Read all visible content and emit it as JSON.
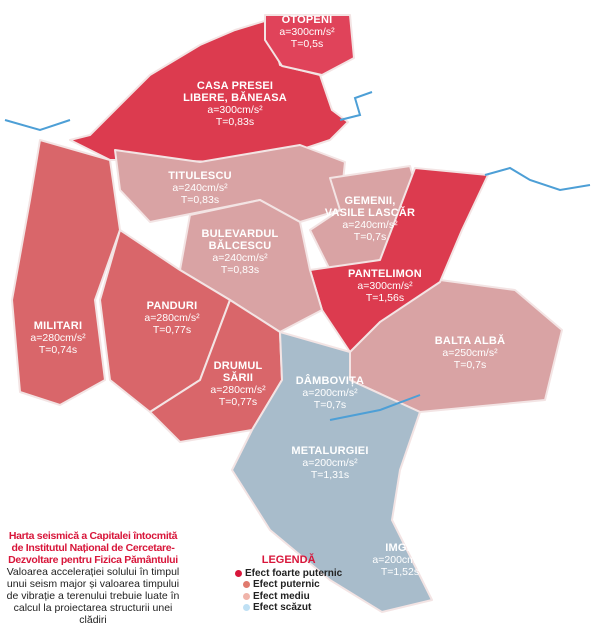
{
  "colors": {
    "very_strong": "#dc3b4f",
    "strong": "#d9666a",
    "medium": "#d9a3a4",
    "low": "#a8bccb",
    "river": "#4d9fd6"
  },
  "zones": [
    {
      "name": "OTOPENI",
      "a": "a=300cm/s²",
      "t": "T=0,5s",
      "effect": "very_strong"
    },
    {
      "name": "CASA PRESEI",
      "name2": "LIBERE, BĂNEASA",
      "a": "a=300cm/s²",
      "t": "T=0,83s",
      "effect": "very_strong"
    },
    {
      "name": "TITULESCU",
      "a": "a=240cm/s²",
      "t": "T=0,83s",
      "effect": "medium"
    },
    {
      "name": "GEMENII,",
      "name2": "VASILE LASCĂR",
      "a": "a=240cm/s²",
      "t": "T=0,7s",
      "effect": "medium"
    },
    {
      "name": "BULEVARDUL",
      "name2": "BĂLCESCU",
      "a": "a=240cm/s²",
      "t": "T=0,83s",
      "effect": "medium"
    },
    {
      "name": "PANTELIMON",
      "a": "a=300cm/s²",
      "t": "T=1,56s",
      "effect": "very_strong"
    },
    {
      "name": "MILITARI",
      "a": "a=280cm/s²",
      "t": "T=0,74s",
      "effect": "strong"
    },
    {
      "name": "PANDURI",
      "a": "a=280cm/s²",
      "t": "T=0,77s",
      "effect": "strong"
    },
    {
      "name": "BALTA ALBĂ",
      "a": "a=250cm/s²",
      "t": "T=0,7s",
      "effect": "medium"
    },
    {
      "name": "DRUMUL",
      "name2": "SĂRII",
      "a": "a=280cm/s²",
      "t": "T=0,77s",
      "effect": "strong"
    },
    {
      "name": "DÂMBOVIȚA",
      "a": "a=200cm/s²",
      "t": "T=0,7s",
      "effect": "low"
    },
    {
      "name": "METALURGIEI",
      "a": "a=200cm/s²",
      "t": "T=1,31s",
      "effect": "low"
    },
    {
      "name": "IMGB",
      "a": "a=200cm/s²",
      "t": "T=1,52s",
      "effect": "low"
    }
  ],
  "caption": {
    "title": "Harta seismică a Capitalei întocmită de Institutul Național de Cercetare-Dezvoltare pentru Fizica Pământului",
    "description": "Valoarea accelerației solului în timpul unui seism major și valoarea timpului de vibrație a terenului trebuie luate în calcul la proiectarea structurii unei clădiri"
  },
  "legend": {
    "title": "LEGENDĂ",
    "items": [
      {
        "label": "Efect foarte puternic",
        "color": "#d8163a"
      },
      {
        "label": "Efect puternic",
        "color": "#e07a6e"
      },
      {
        "label": "Efect mediu",
        "color": "#f0b4aa"
      },
      {
        "label": "Efect scăzut",
        "color": "#bfe0f4"
      }
    ]
  }
}
